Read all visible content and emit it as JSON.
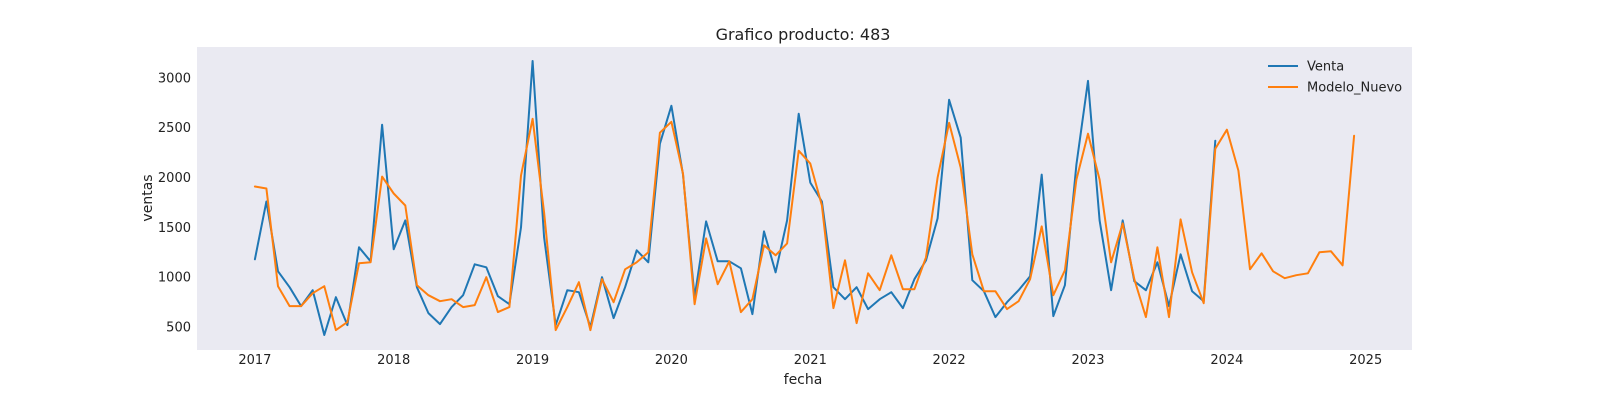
{
  "chart_data": {
    "type": "line",
    "title": "Grafico producto: 483",
    "xlabel": "fecha",
    "ylabel": "ventas",
    "x_tick_labels": [
      "2017",
      "2018",
      "2019",
      "2020",
      "2021",
      "2022",
      "2023",
      "2024",
      "2025"
    ],
    "y_tick_labels": [
      "500",
      "1000",
      "1500",
      "2000",
      "2500",
      "3000"
    ],
    "xlim": [
      "2016-08",
      "2025-05"
    ],
    "ylim": [
      270,
      3310
    ],
    "grid": false,
    "legend_position": "top-right",
    "background": "#eaeaf2",
    "series": [
      {
        "name": "Venta",
        "color": "#1f77b4",
        "start": "2017-01",
        "values": [
          1180,
          1760,
          1060,
          900,
          710,
          870,
          420,
          800,
          520,
          1300,
          1160,
          2530,
          1280,
          1570,
          900,
          640,
          530,
          700,
          820,
          1130,
          1100,
          810,
          730,
          1500,
          3170,
          1400,
          520,
          870,
          850,
          500,
          1000,
          590,
          900,
          1270,
          1150,
          2340,
          2720,
          2030,
          800,
          1560,
          1160,
          1160,
          1090,
          630,
          1460,
          1050,
          1570,
          2640,
          1950,
          1760,
          900,
          780,
          900,
          680,
          780,
          850,
          690,
          980,
          1170,
          1590,
          2780,
          2400,
          970,
          860,
          600,
          750,
          870,
          1010,
          2030,
          610,
          920,
          2130,
          2970,
          1570,
          870,
          1570,
          960,
          870,
          1150,
          710,
          1230,
          860,
          760,
          2370
        ]
      },
      {
        "name": "Modelo_Nuevo",
        "color": "#ff7f0e",
        "start": "2017-01",
        "values": [
          1910,
          1890,
          910,
          710,
          710,
          840,
          910,
          470,
          550,
          1140,
          1150,
          2010,
          1840,
          1720,
          920,
          820,
          760,
          780,
          700,
          720,
          1000,
          650,
          700,
          2020,
          2590,
          1650,
          470,
          700,
          950,
          470,
          980,
          750,
          1080,
          1150,
          1250,
          2450,
          2560,
          2040,
          730,
          1390,
          930,
          1160,
          650,
          780,
          1320,
          1220,
          1340,
          2270,
          2140,
          1720,
          690,
          1170,
          540,
          1040,
          870,
          1220,
          880,
          880,
          1200,
          2000,
          2550,
          2100,
          1230,
          860,
          860,
          680,
          760,
          980,
          1510,
          820,
          1070,
          1980,
          2440,
          1980,
          1150,
          1540,
          980,
          600,
          1300,
          600,
          1580,
          1050,
          740,
          2290,
          2480,
          2070,
          1080,
          1240,
          1060,
          990,
          1020,
          1040,
          1250,
          1260,
          1120,
          2420
        ]
      }
    ]
  }
}
